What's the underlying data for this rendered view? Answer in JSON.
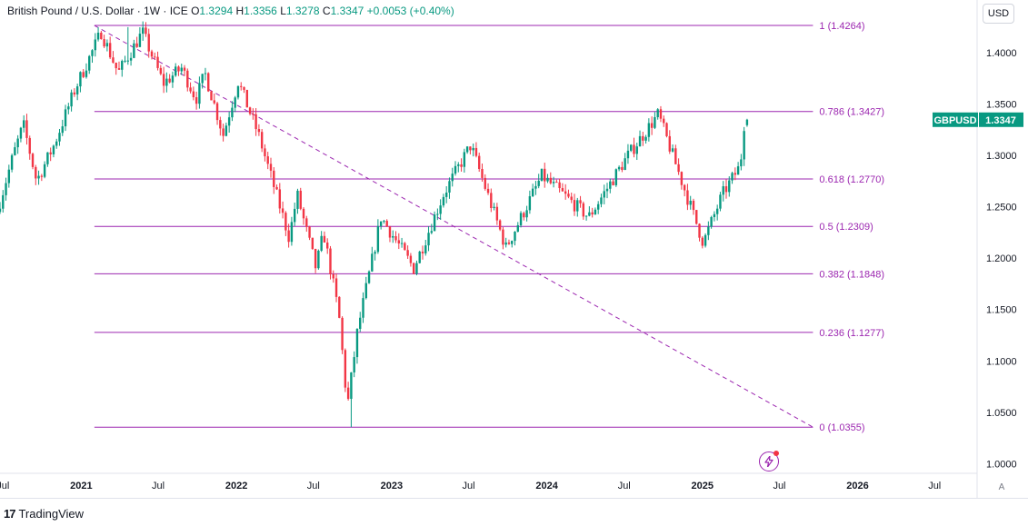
{
  "legend": {
    "title": "British Pound / U.S. Dollar · 1W · ICE",
    "o_label": "O",
    "o_value": "1.3294",
    "h_label": "H",
    "h_value": "1.3356",
    "l_label": "L",
    "l_value": "1.3278",
    "c_label": "C",
    "c_value": "1.3347",
    "change": "+0.0053 (+0.40%)"
  },
  "currency_button": "USD",
  "auto_scale_button": "A",
  "brand": {
    "logo_text": "17",
    "name": "TradingView"
  },
  "icons": {
    "flash": "lightning-icon"
  },
  "colors": {
    "up": "#089981",
    "down": "#f23645",
    "fib": "#9c27b0",
    "price_tag": "#089981"
  },
  "chart_data": {
    "type": "candlestick",
    "symbol_tag": {
      "symbol": "GBPUSD",
      "price": "1.3347",
      "value": 1.3347
    },
    "ylim": [
      0.9906,
      1.4512
    ],
    "xlim": [
      "2020-06-24",
      "2026-10-09"
    ],
    "y_ticks": [
      "1.0000",
      "1.0500",
      "1.1000",
      "1.1500",
      "1.2000",
      "1.2500",
      "1.3000",
      "1.3500",
      "1.4000"
    ],
    "x_ticks": [
      {
        "label": "Jul",
        "date": "2020-07-01",
        "bold": false
      },
      {
        "label": "2021",
        "date": "2021-01-01",
        "bold": true
      },
      {
        "label": "Jul",
        "date": "2021-07-01",
        "bold": false
      },
      {
        "label": "2022",
        "date": "2022-01-01",
        "bold": true
      },
      {
        "label": "Jul",
        "date": "2022-07-01",
        "bold": false
      },
      {
        "label": "2023",
        "date": "2023-01-01",
        "bold": true
      },
      {
        "label": "Jul",
        "date": "2023-07-01",
        "bold": false
      },
      {
        "label": "2024",
        "date": "2024-01-01",
        "bold": true
      },
      {
        "label": "Jul",
        "date": "2024-07-01",
        "bold": false
      },
      {
        "label": "2025",
        "date": "2025-01-01",
        "bold": true
      },
      {
        "label": "Jul",
        "date": "2025-07-01",
        "bold": false
      },
      {
        "label": "2026",
        "date": "2026-01-01",
        "bold": true
      },
      {
        "label": "Jul",
        "date": "2026-07-01",
        "bold": false
      }
    ],
    "fib_start_date": "2021-02-01",
    "fib_end_date": "2025-09-18",
    "fib_levels": [
      {
        "label": "1 (1.4264)",
        "value": 1.4264
      },
      {
        "label": "0.786 (1.3427)",
        "value": 1.3427
      },
      {
        "label": "0.618 (1.2770)",
        "value": 1.277
      },
      {
        "label": "0.5 (1.2309)",
        "value": 1.2309
      },
      {
        "label": "0.382 (1.1848)",
        "value": 1.1848
      },
      {
        "label": "0.236 (1.1277)",
        "value": 1.1277
      },
      {
        "label": "0 (1.0355)",
        "value": 1.0355
      }
    ],
    "trend_line": {
      "from": {
        "date": "2021-02-01",
        "value": 1.4264
      },
      "to": {
        "date": "2025-09-18",
        "value": 1.0355
      }
    },
    "price_path": [
      [
        "2020-06-24",
        1.245
      ],
      [
        "2020-08-01",
        1.3
      ],
      [
        "2020-08-25",
        1.33
      ],
      [
        "2020-09-25",
        1.275
      ],
      [
        "2020-11-05",
        1.31
      ],
      [
        "2020-12-25",
        1.365
      ],
      [
        "2021-02-24",
        1.42
      ],
      [
        "2021-04-05",
        1.38
      ],
      [
        "2021-06-01",
        1.42
      ],
      [
        "2021-07-20",
        1.37
      ],
      [
        "2021-09-01",
        1.385
      ],
      [
        "2021-10-05",
        1.355
      ],
      [
        "2021-10-26",
        1.38
      ],
      [
        "2021-12-08",
        1.32
      ],
      [
        "2022-01-12",
        1.372
      ],
      [
        "2022-03-01",
        1.32
      ],
      [
        "2022-05-12",
        1.22
      ],
      [
        "2022-05-31",
        1.262
      ],
      [
        "2022-07-14",
        1.19
      ],
      [
        "2022-08-01",
        1.225
      ],
      [
        "2022-09-06",
        1.145
      ],
      [
        "2022-09-26",
        1.055
      ],
      [
        "2022-10-20",
        1.13
      ],
      [
        "2022-12-14",
        1.24
      ],
      [
        "2023-03-01",
        1.19
      ],
      [
        "2023-05-10",
        1.262
      ],
      [
        "2023-07-13",
        1.31
      ],
      [
        "2023-10-04",
        1.21
      ],
      [
        "2023-12-27",
        1.28
      ],
      [
        "2024-04-16",
        1.24
      ],
      [
        "2024-07-17",
        1.3
      ],
      [
        "2024-09-26",
        1.34
      ],
      [
        "2025-01-10",
        1.215
      ],
      [
        "2025-02-24",
        1.262
      ],
      [
        "2025-04-07",
        1.29
      ],
      [
        "2025-04-17",
        1.3347
      ]
    ],
    "wick_extremes": {
      "high": {
        "date": "2021-04-21",
        "value": 1.4248
      },
      "low": {
        "date": "2022-09-26",
        "value": 1.0355
      }
    },
    "last_close_date": "2025-04-17"
  }
}
